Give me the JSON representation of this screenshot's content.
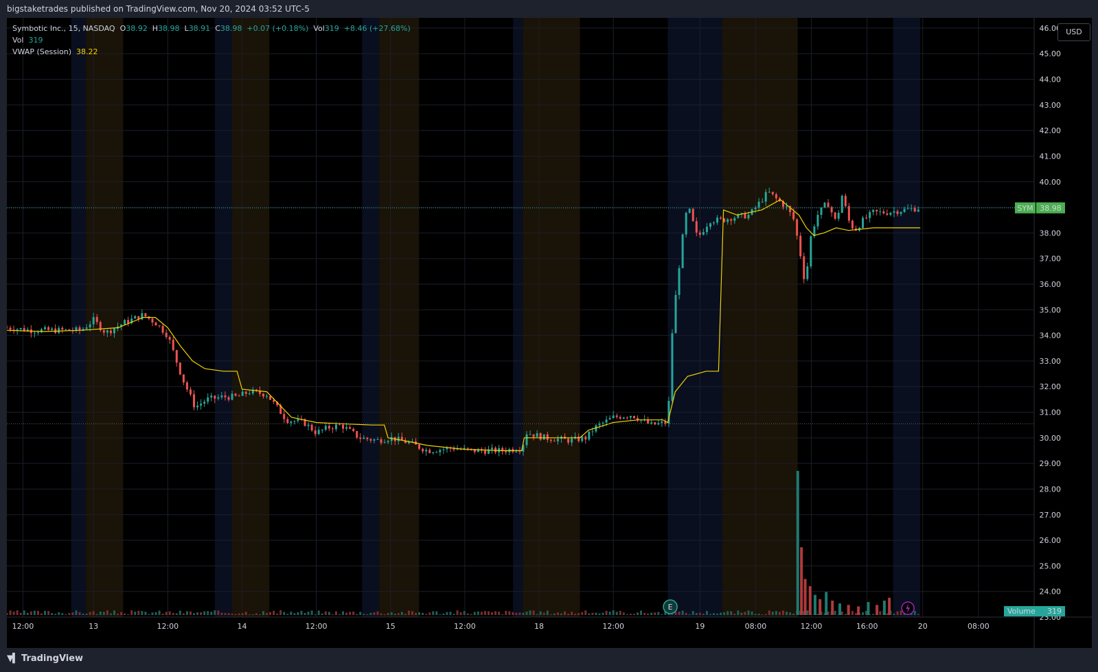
{
  "header": {
    "publish_line": "bigstaketrades published on TradingView.com, Nov 20, 2024 03:52 UTC-5"
  },
  "legend": {
    "symbol_desc": "Symbotic Inc., 15, NASDAQ",
    "o_label": "O",
    "o_val": "38.92",
    "h_label": "H",
    "h_val": "38.98",
    "l_label": "L",
    "l_val": "38.91",
    "c_label": "C",
    "c_val": "38.98",
    "change": "+0.07 (+0.18%)",
    "vol_label": "Vol",
    "vol_val": "319",
    "vol_change": "+8.46 (+27.68%)",
    "vol_row_label": "Vol",
    "vol_row_val": "319",
    "vwap_label": "VWAP (Session)",
    "vwap_val": "38.22"
  },
  "currency_button": "USD",
  "footer": {
    "logo_icon": "tradingview-logo-icon",
    "brand": "TradingView"
  },
  "colors": {
    "up": "#26a69a",
    "down": "#ef5350",
    "vwap": "#f5d300",
    "price_tag": "#4caf50",
    "volume_tag": "#26a69a",
    "premarket_band": "#0a0f1f",
    "afterhours_band": "#1a1307"
  },
  "chart_data": {
    "type": "candlestick",
    "symbol": "SYM",
    "last_price": "38.98",
    "ref_line": 30.55,
    "yticks": [
      "46.00",
      "45.00",
      "44.00",
      "43.00",
      "42.00",
      "41.00",
      "40.00",
      "39.00",
      "38.00",
      "37.00",
      "36.00",
      "35.00",
      "34.00",
      "33.00",
      "32.00",
      "31.00",
      "30.00",
      "29.00",
      "28.00",
      "27.00",
      "26.00",
      "25.00",
      "24.00",
      "23.00"
    ],
    "ylim": [
      23,
      46.4
    ],
    "xticks": [
      {
        "label": "12:00",
        "t": 1.3
      },
      {
        "label": "13",
        "t": 7.0
      },
      {
        "label": "12:00",
        "t": 13.0
      },
      {
        "label": "14",
        "t": 19.0
      },
      {
        "label": "12:00",
        "t": 25.0
      },
      {
        "label": "15",
        "t": 31.0
      },
      {
        "label": "12:00",
        "t": 37.0
      },
      {
        "label": "18",
        "t": 43.0
      },
      {
        "label": "12:00",
        "t": 49.0
      },
      {
        "label": "19",
        "t": 56.0
      },
      {
        "label": "08:00",
        "t": 60.5
      },
      {
        "label": "12:00",
        "t": 65.0
      },
      {
        "label": "16:00",
        "t": 69.5
      },
      {
        "label": "20",
        "t": 74.0
      },
      {
        "label": "08:00",
        "t": 78.5
      }
    ],
    "xlim": [
      0,
      83
    ],
    "sessions": [
      {
        "type": "pre",
        "start": 5.2,
        "end": 6.4
      },
      {
        "type": "post",
        "start": 6.4,
        "end": 9.4
      },
      {
        "type": "pre",
        "start": 16.8,
        "end": 18.2
      },
      {
        "type": "post",
        "start": 18.2,
        "end": 21.2
      },
      {
        "type": "pre",
        "start": 28.7,
        "end": 30.1
      },
      {
        "type": "post",
        "start": 30.1,
        "end": 33.3
      },
      {
        "type": "pre",
        "start": 40.9,
        "end": 41.7
      },
      {
        "type": "post",
        "start": 41.7,
        "end": 46.3
      },
      {
        "type": "pre",
        "start": 53.4,
        "end": 57.8
      },
      {
        "type": "post",
        "start": 57.8,
        "end": 63.9
      },
      {
        "type": "pre",
        "start": 71.6,
        "end": 73.8
      }
    ],
    "price_path": [
      [
        0,
        34.3
      ],
      [
        2,
        34.2
      ],
      [
        4,
        34.2
      ],
      [
        6,
        34.2
      ],
      [
        7,
        34.6
      ],
      [
        8,
        34.1
      ],
      [
        9.5,
        34.5
      ],
      [
        11,
        34.8
      ],
      [
        12,
        34.5
      ],
      [
        13,
        34.0
      ],
      [
        13.7,
        33.0
      ],
      [
        14.2,
        32.3
      ],
      [
        15.2,
        31.2
      ],
      [
        16.2,
        31.5
      ],
      [
        17.5,
        31.6
      ],
      [
        18.6,
        31.6
      ],
      [
        19.6,
        31.8
      ],
      [
        21,
        31.7
      ],
      [
        21.8,
        31.2
      ],
      [
        22.6,
        30.7
      ],
      [
        24,
        30.6
      ],
      [
        25,
        30.2
      ],
      [
        26,
        30.4
      ],
      [
        27,
        30.5
      ],
      [
        28.5,
        30.0
      ],
      [
        30,
        29.9
      ],
      [
        31,
        30.0
      ],
      [
        32.5,
        29.8
      ],
      [
        34,
        29.5
      ],
      [
        36,
        29.6
      ],
      [
        37.5,
        29.5
      ],
      [
        40,
        29.5
      ],
      [
        41.6,
        29.6
      ],
      [
        42,
        30.2
      ],
      [
        43.5,
        30.0
      ],
      [
        45.5,
        29.9
      ],
      [
        46.8,
        30.0
      ],
      [
        47.5,
        30.4
      ],
      [
        49,
        30.8
      ],
      [
        50.5,
        30.9
      ],
      [
        52,
        30.5
      ],
      [
        53.4,
        30.6
      ],
      [
        53.8,
        34.5
      ],
      [
        54.5,
        37.5
      ],
      [
        55,
        39.1
      ],
      [
        55.8,
        37.8
      ],
      [
        56.8,
        38.5
      ],
      [
        57.8,
        38.5
      ],
      [
        58.5,
        38.6
      ],
      [
        60,
        38.7
      ],
      [
        61.5,
        39.6
      ],
      [
        62.5,
        39.2
      ],
      [
        63,
        39.0
      ],
      [
        63.6,
        38.5
      ],
      [
        64.1,
        37.2
      ],
      [
        64.5,
        36.0
      ],
      [
        65,
        38.0
      ],
      [
        65.5,
        38.7
      ],
      [
        66.3,
        39.2
      ],
      [
        67,
        38.4
      ],
      [
        67.5,
        39.5
      ],
      [
        68,
        38.5
      ],
      [
        68.5,
        38.1
      ],
      [
        69.2,
        38.5
      ],
      [
        70,
        38.8
      ],
      [
        71,
        38.8
      ],
      [
        72.5,
        38.9
      ],
      [
        73.8,
        38.98
      ]
    ],
    "vwap_path": [
      [
        0,
        34.2
      ],
      [
        3,
        34.15
      ],
      [
        6,
        34.2
      ],
      [
        9,
        34.3
      ],
      [
        11,
        34.7
      ],
      [
        12,
        34.7
      ],
      [
        13,
        34.3
      ],
      [
        14,
        33.6
      ],
      [
        15,
        33.0
      ],
      [
        16,
        32.7
      ],
      [
        17.5,
        32.6
      ],
      [
        18.6,
        32.6
      ],
      [
        19,
        31.9
      ],
      [
        20,
        31.85
      ],
      [
        21,
        31.8
      ],
      [
        22,
        31.3
      ],
      [
        23,
        30.8
      ],
      [
        25,
        30.6
      ],
      [
        27,
        30.55
      ],
      [
        29.5,
        30.5
      ],
      [
        30.5,
        30.5
      ],
      [
        30.8,
        30.0
      ],
      [
        32,
        29.9
      ],
      [
        34,
        29.7
      ],
      [
        37,
        29.55
      ],
      [
        40,
        29.5
      ],
      [
        41.6,
        29.5
      ],
      [
        41.8,
        30.0
      ],
      [
        44,
        30.0
      ],
      [
        46.3,
        30.0
      ],
      [
        47,
        30.3
      ],
      [
        49,
        30.6
      ],
      [
        51,
        30.7
      ],
      [
        53,
        30.7
      ],
      [
        53.4,
        30.6
      ],
      [
        54,
        31.8
      ],
      [
        55,
        32.4
      ],
      [
        56.5,
        32.6
      ],
      [
        57.5,
        32.6
      ],
      [
        57.9,
        38.9
      ],
      [
        59,
        38.7
      ],
      [
        61,
        38.9
      ],
      [
        62.5,
        39.3
      ],
      [
        63.5,
        38.9
      ],
      [
        64,
        38.7
      ],
      [
        64.6,
        38.2
      ],
      [
        65.2,
        37.9
      ],
      [
        66,
        38.0
      ],
      [
        67,
        38.2
      ],
      [
        68,
        38.1
      ],
      [
        70,
        38.2
      ],
      [
        71,
        38.2
      ],
      [
        73.8,
        38.2
      ]
    ],
    "volume_spikes": [
      {
        "t": 63.9,
        "v": 1.0,
        "dir": "up"
      },
      {
        "t": 64.2,
        "v": 0.47,
        "dir": "down"
      },
      {
        "t": 64.5,
        "v": 0.25,
        "dir": "down"
      },
      {
        "t": 64.9,
        "v": 0.2,
        "dir": "down"
      },
      {
        "t": 65.3,
        "v": 0.14,
        "dir": "up"
      },
      {
        "t": 65.7,
        "v": 0.11,
        "dir": "down"
      },
      {
        "t": 66.2,
        "v": 0.16,
        "dir": "up"
      },
      {
        "t": 66.7,
        "v": 0.1,
        "dir": "down"
      },
      {
        "t": 67.3,
        "v": 0.08,
        "dir": "up"
      },
      {
        "t": 68.0,
        "v": 0.07,
        "dir": "down"
      },
      {
        "t": 68.8,
        "v": 0.06,
        "dir": "down"
      },
      {
        "t": 69.6,
        "v": 0.09,
        "dir": "up"
      },
      {
        "t": 70.3,
        "v": 0.07,
        "dir": "down"
      },
      {
        "t": 70.9,
        "v": 0.1,
        "dir": "up"
      },
      {
        "t": 71.3,
        "v": 0.12,
        "dir": "down"
      }
    ],
    "volume_label": "Volume",
    "volume_value": "319"
  }
}
